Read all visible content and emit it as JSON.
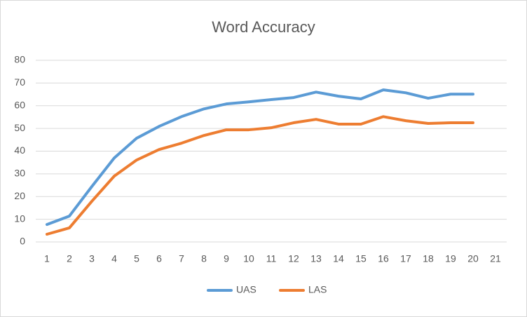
{
  "chart_data": {
    "type": "line",
    "title": "Word Accuracy",
    "categories": [
      1,
      2,
      3,
      4,
      5,
      6,
      7,
      8,
      9,
      10,
      11,
      12,
      13,
      14,
      15,
      16,
      17,
      18,
      19,
      20,
      21
    ],
    "series": [
      {
        "name": "UAS",
        "color": "#5b9bd5",
        "values": [
          7.7,
          11.4,
          24.4,
          37,
          45.7,
          50.9,
          55.2,
          58.6,
          60.8,
          61.7,
          62.7,
          63.6,
          66,
          64.2,
          63,
          67,
          65.7,
          63.3,
          65.1,
          65.1,
          null
        ]
      },
      {
        "name": "LAS",
        "color": "#ed7d31",
        "values": [
          3.4,
          6.2,
          17.9,
          29,
          36.1,
          40.7,
          43.5,
          46.9,
          49.4,
          49.4,
          50.3,
          52.5,
          54,
          51.9,
          51.9,
          55.2,
          53.4,
          52.2,
          52.5,
          52.5,
          null
        ]
      }
    ],
    "ylim": [
      0,
      80
    ],
    "yticks": [
      0,
      10,
      20,
      30,
      40,
      50,
      60,
      70,
      80
    ],
    "grid": true,
    "legend": "bottom"
  }
}
